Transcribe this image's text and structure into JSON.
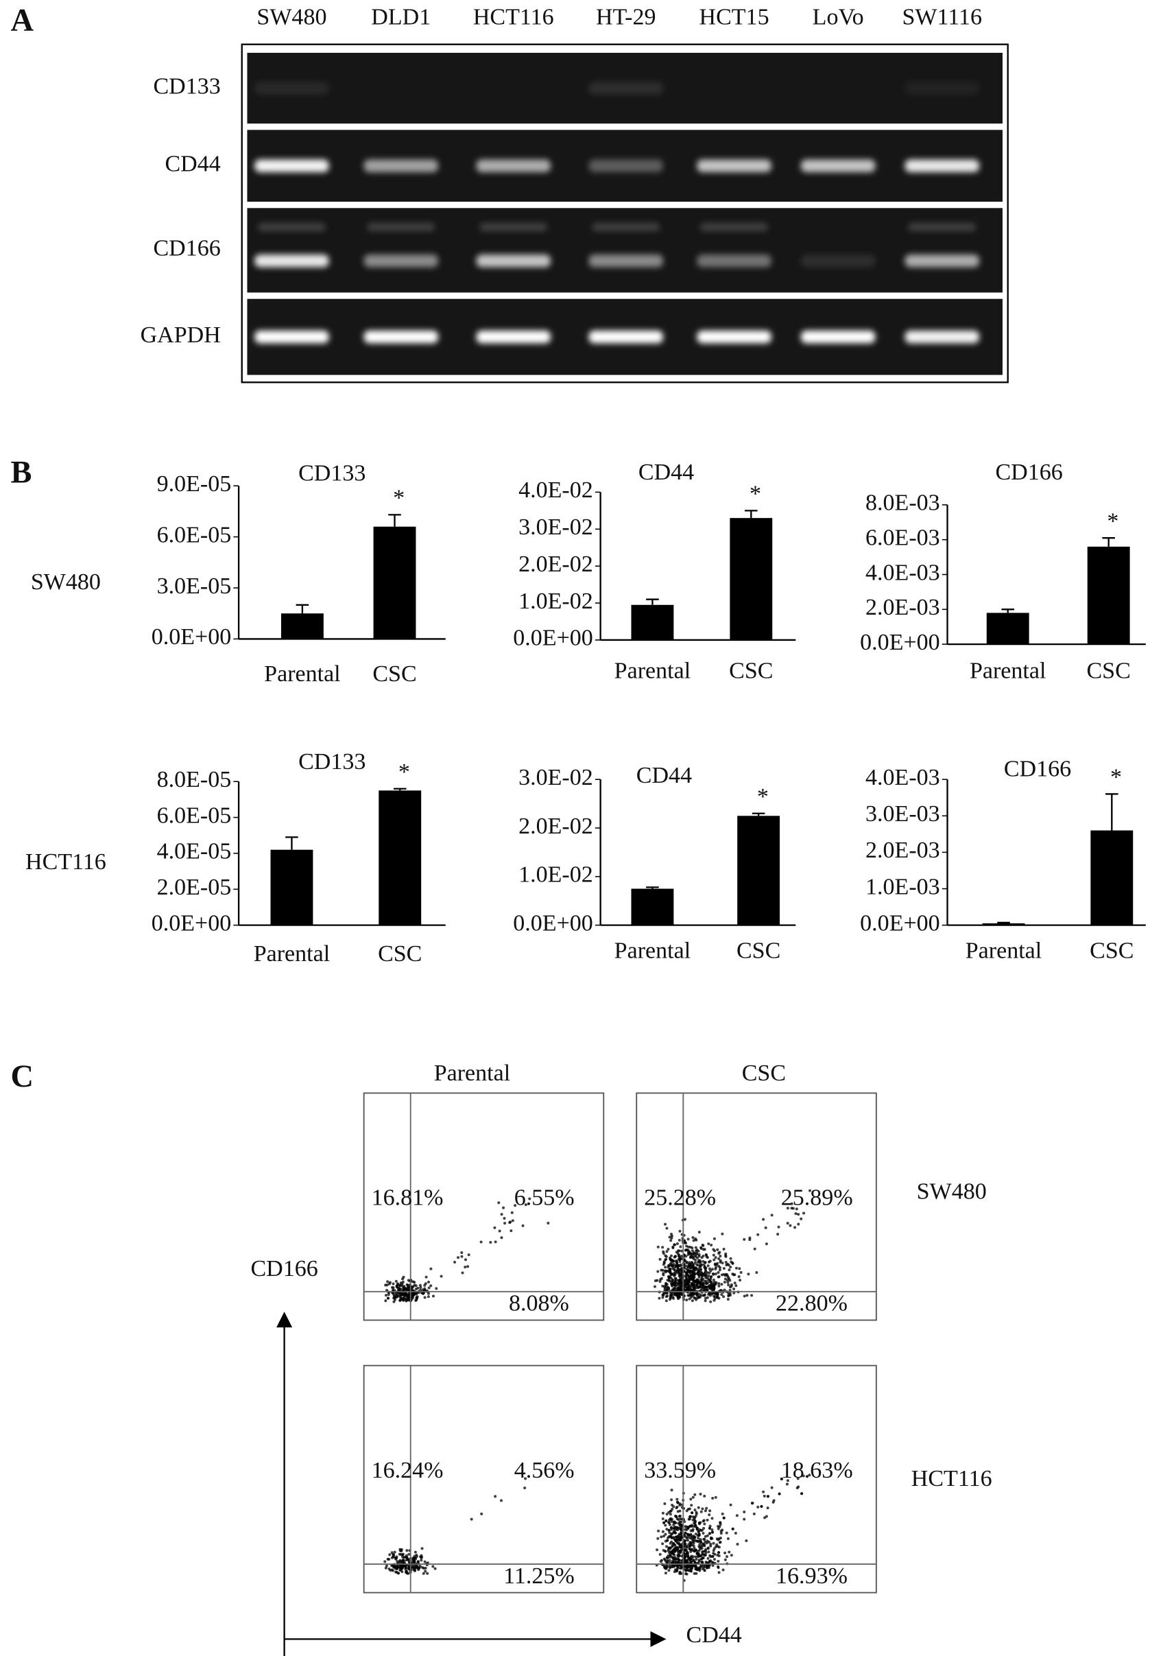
{
  "panel_a": {
    "label": "A",
    "lanes": [
      "SW480",
      "DLD1",
      "HCT116",
      "HT-29",
      "HCT15",
      "LoVo",
      "SW1116"
    ],
    "genes": [
      "CD133",
      "CD44",
      "CD166",
      "GAPDH"
    ]
  },
  "panel_b": {
    "label": "B",
    "rows": [
      "SW480",
      "HCT116"
    ]
  },
  "chart_data": [
    {
      "type": "bar",
      "title": "CD133",
      "categories": [
        "Parental",
        "CSC"
      ],
      "values": [
        1.5e-05,
        6.6e-05
      ],
      "errors": [
        5e-06,
        7e-06
      ],
      "annotation": "*",
      "color": "#000000",
      "ylim": [
        0,
        9e-05
      ],
      "yticks": [
        {
          "value": 0,
          "label": "0.0E+00"
        },
        {
          "value": 3e-05,
          "label": "3.0E-05"
        },
        {
          "value": 6e-05,
          "label": "6.0E-05"
        },
        {
          "value": 9e-05,
          "label": "9.0E-05"
        }
      ]
    },
    {
      "type": "bar",
      "title": "CD44",
      "categories": [
        "Parental",
        "CSC"
      ],
      "values": [
        0.0095,
        0.033
      ],
      "errors": [
        0.0015,
        0.002
      ],
      "annotation": "*",
      "color": "#000000",
      "ylim": [
        0,
        0.04
      ],
      "yticks": [
        {
          "value": 0,
          "label": "0.0E+00"
        },
        {
          "value": 0.01,
          "label": "1.0E-02"
        },
        {
          "value": 0.02,
          "label": "2.0E-02"
        },
        {
          "value": 0.03,
          "label": "3.0E-02"
        },
        {
          "value": 0.04,
          "label": "4.0E-02"
        }
      ]
    },
    {
      "type": "bar",
      "title": "CD166",
      "categories": [
        "Parental",
        "CSC"
      ],
      "values": [
        0.0018,
        0.0056
      ],
      "errors": [
        0.0002,
        0.0005
      ],
      "annotation": "*",
      "color": "#000000",
      "ylim": [
        0,
        0.008
      ],
      "yticks": [
        {
          "value": 0,
          "label": "0.0E+00"
        },
        {
          "value": 0.002,
          "label": "2.0E-03"
        },
        {
          "value": 0.004,
          "label": "4.0E-03"
        },
        {
          "value": 0.006,
          "label": "6.0E-03"
        },
        {
          "value": 0.008,
          "label": "8.0E-03"
        }
      ]
    },
    {
      "type": "bar",
      "title": "CD133",
      "categories": [
        "Parental",
        "CSC"
      ],
      "values": [
        4.2e-05,
        7.5e-05
      ],
      "errors": [
        7e-06,
        1e-06
      ],
      "annotation": "*",
      "color": "#000000",
      "ylim": [
        0,
        8e-05
      ],
      "yticks": [
        {
          "value": 0,
          "label": "0.0E+00"
        },
        {
          "value": 2e-05,
          "label": "2.0E-05"
        },
        {
          "value": 4e-05,
          "label": "4.0E-05"
        },
        {
          "value": 6e-05,
          "label": "6.0E-05"
        },
        {
          "value": 8e-05,
          "label": "8.0E-05"
        }
      ]
    },
    {
      "type": "bar",
      "title": "CD44",
      "categories": [
        "Parental",
        "CSC"
      ],
      "values": [
        0.0075,
        0.0225
      ],
      "errors": [
        0.0003,
        0.0005
      ],
      "annotation": "*",
      "color": "#000000",
      "ylim": [
        0,
        0.03
      ],
      "yticks": [
        {
          "value": 0,
          "label": "0.0E+00"
        },
        {
          "value": 0.01,
          "label": "1.0E-02"
        },
        {
          "value": 0.02,
          "label": "2.0E-02"
        },
        {
          "value": 0.03,
          "label": "3.0E-02"
        }
      ]
    },
    {
      "type": "bar",
      "title": "CD166",
      "categories": [
        "Parental",
        "CSC"
      ],
      "values": [
        5e-05,
        0.0026
      ],
      "errors": [
        2e-05,
        0.001
      ],
      "annotation": "*",
      "color": "#000000",
      "ylim": [
        0,
        0.004
      ],
      "yticks": [
        {
          "value": 0,
          "label": "0.0E+00"
        },
        {
          "value": 0.001,
          "label": "1.0E-03"
        },
        {
          "value": 0.002,
          "label": "2.0E-03"
        },
        {
          "value": 0.003,
          "label": "3.0E-03"
        },
        {
          "value": 0.004,
          "label": "4.0E-03"
        }
      ]
    }
  ],
  "panel_c": {
    "label": "C",
    "columns": [
      "Parental",
      "CSC"
    ],
    "rows": [
      "SW480",
      "HCT116"
    ],
    "y_axis_label": "CD166",
    "x_axis_label": "CD44",
    "plots": [
      {
        "upper_left": "16.81%",
        "upper_right": "6.55%",
        "lower_right": "8.08%"
      },
      {
        "upper_left": "25.28%",
        "upper_right": "25.89%",
        "lower_right": "22.80%"
      },
      {
        "upper_left": "16.24%",
        "upper_right": "4.56%",
        "lower_right": "11.25%"
      },
      {
        "upper_left": "33.59%",
        "upper_right": "18.63%",
        "lower_right": "16.93%"
      }
    ]
  }
}
